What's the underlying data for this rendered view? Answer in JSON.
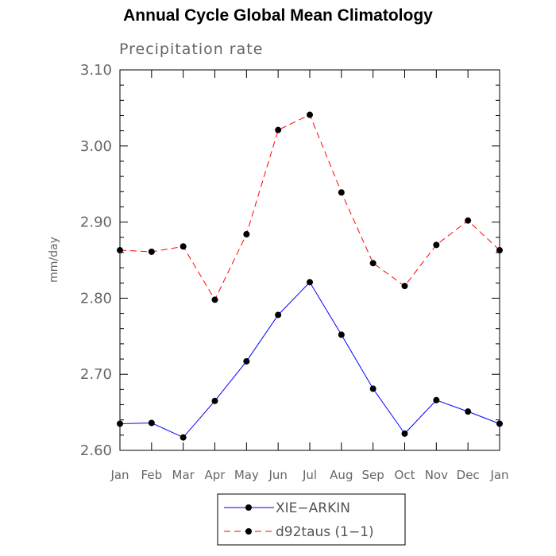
{
  "chart_data": {
    "type": "line",
    "title": "Annual Cycle Global Mean Climatology",
    "subtitle": "Precipitation rate",
    "xlabel": "",
    "ylabel": "mm/day",
    "categories": [
      "Jan",
      "Feb",
      "Mar",
      "Apr",
      "May",
      "Jun",
      "Jul",
      "Aug",
      "Sep",
      "Oct",
      "Nov",
      "Dec",
      "Jan"
    ],
    "ylim": [
      2.6,
      3.1
    ],
    "yticks": [
      "2.60",
      "2.70",
      "2.80",
      "2.90",
      "3.00",
      "3.10"
    ],
    "grid": false,
    "legend_position": "bottom-center",
    "series": [
      {
        "name": "XIE−ARKIN",
        "color": "#0000ff",
        "line_style": "solid",
        "marker": "filled-circle",
        "values": [
          2.635,
          2.636,
          2.617,
          2.665,
          2.717,
          2.778,
          2.821,
          2.752,
          2.681,
          2.622,
          2.666,
          2.651,
          2.635
        ]
      },
      {
        "name": "d92taus (1−1)",
        "color": "#ff0000",
        "line_style": "dashed",
        "marker": "filled-circle",
        "values": [
          2.863,
          2.861,
          2.868,
          2.798,
          2.884,
          3.021,
          3.041,
          2.939,
          2.846,
          2.816,
          2.87,
          2.902,
          2.863
        ]
      }
    ]
  }
}
